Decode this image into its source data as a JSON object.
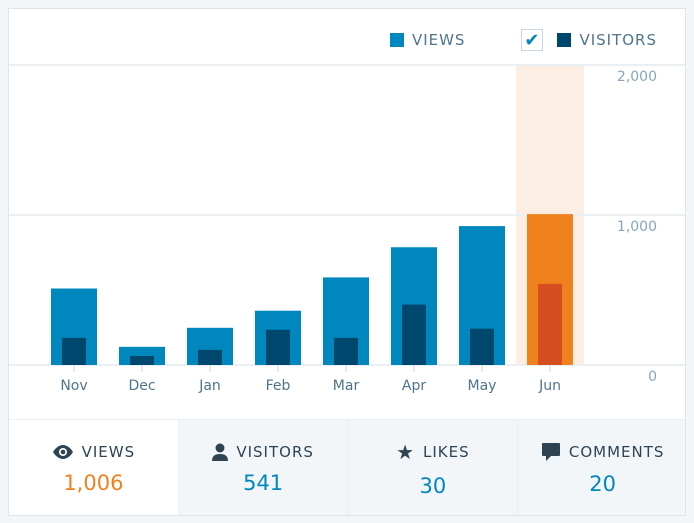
{
  "legend": {
    "views": "VIEWS",
    "visitors": "VISITORS",
    "visitors_checked": true
  },
  "colors": {
    "views": "#0087be",
    "visitors": "#00476e",
    "highlight_views": "#f0821e",
    "highlight_visitors": "#d54e21",
    "highlight_bg": "#fdeee3"
  },
  "chart_data": {
    "type": "bar",
    "categories": [
      "Nov",
      "Dec",
      "Jan",
      "Feb",
      "Mar",
      "Apr",
      "May",
      "Jun"
    ],
    "series": [
      {
        "name": "VIEWS",
        "values": [
          510,
          121,
          248,
          362,
          584,
          785,
          926,
          1006
        ]
      },
      {
        "name": "VISITORS",
        "values": [
          181,
          60,
          101,
          235,
          181,
          403,
          242,
          541
        ]
      }
    ],
    "yticks": [
      "0",
      "1,000",
      "2,000"
    ],
    "ylim": [
      0,
      2000
    ],
    "grid": true,
    "highlighted": "Jun"
  },
  "tabs": [
    {
      "label": "VIEWS",
      "value": "1,006",
      "icon": "eye-icon"
    },
    {
      "label": "VISITORS",
      "value": "541",
      "icon": "person-icon"
    },
    {
      "label": "LIKES",
      "value": "30",
      "icon": "star-icon"
    },
    {
      "label": "COMMENTS",
      "value": "20",
      "icon": "comment-icon"
    }
  ]
}
